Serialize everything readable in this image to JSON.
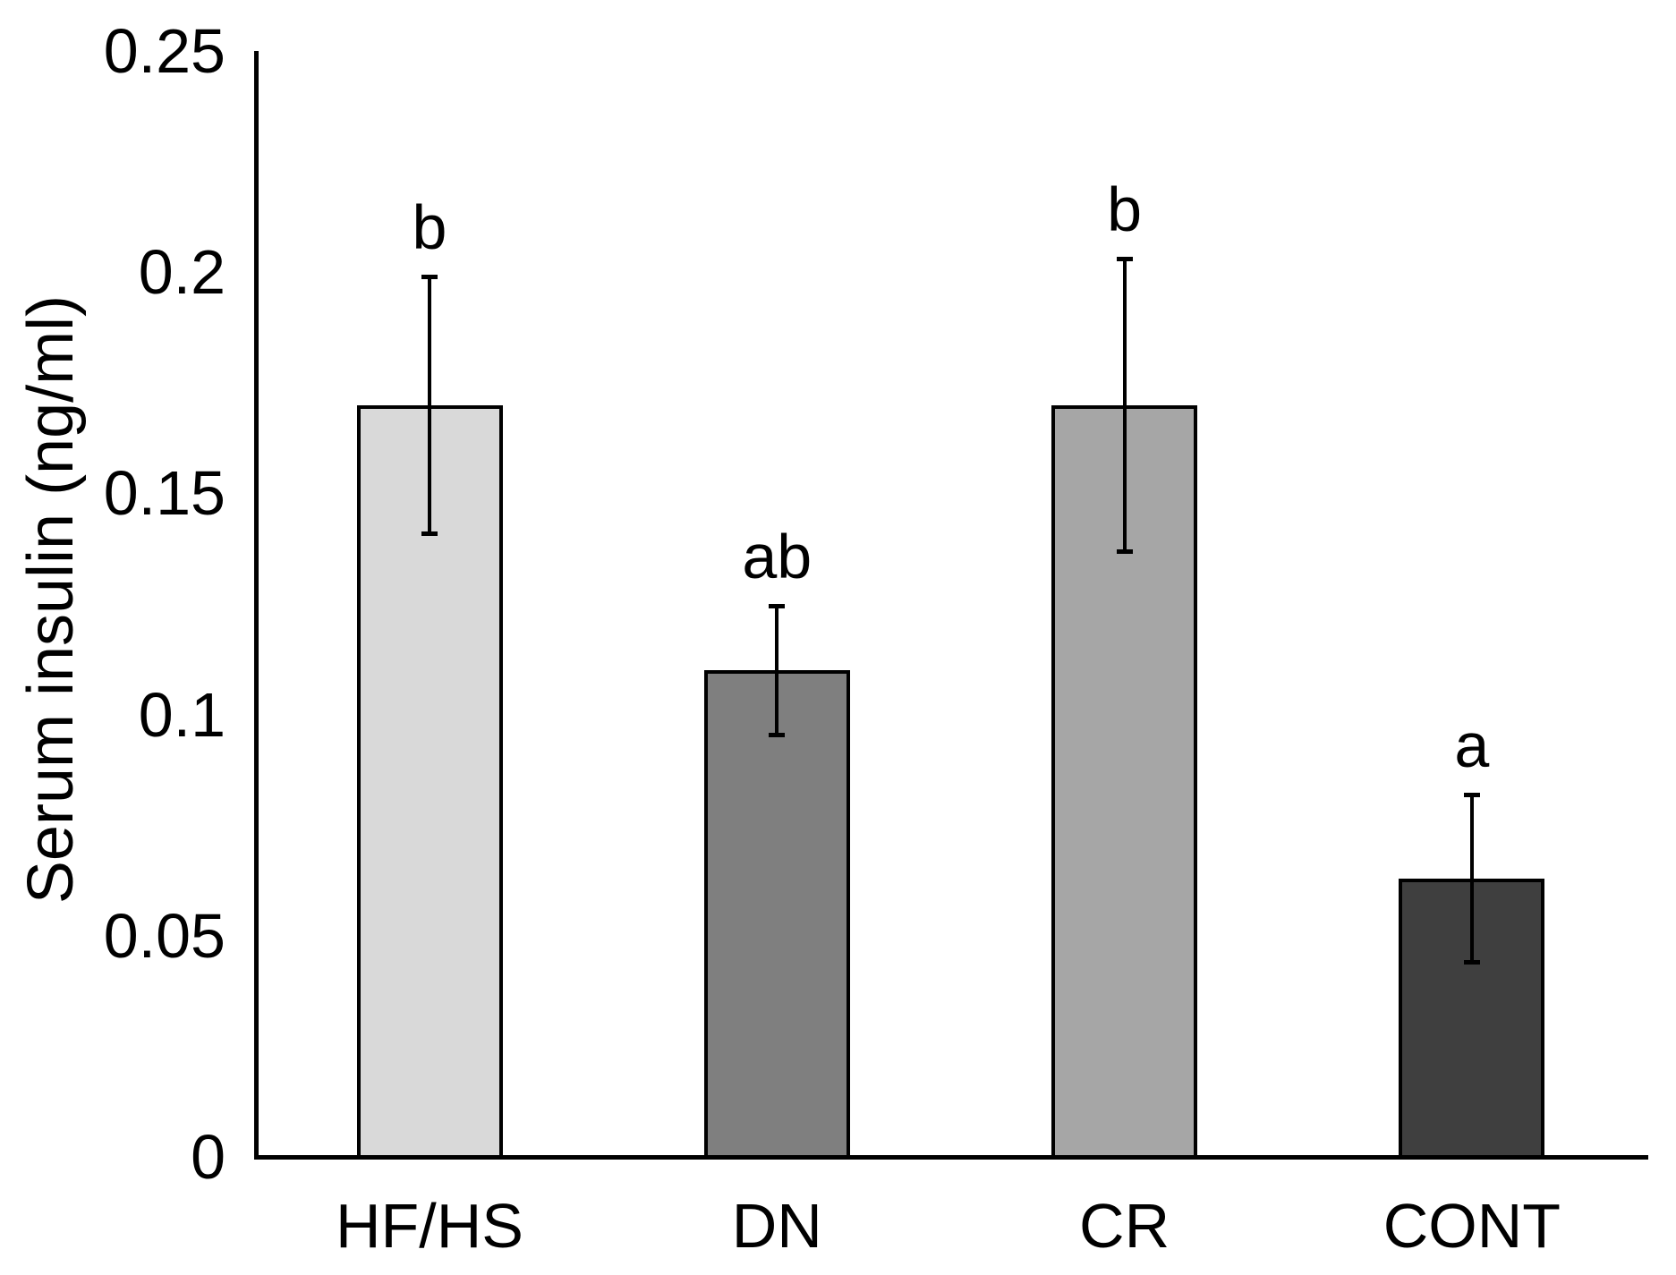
{
  "chart_data": {
    "type": "bar",
    "title": "",
    "xlabel": "",
    "ylabel": "Serum insulin (ng/ml)",
    "categories": [
      "HF/HS",
      "DN",
      "CR",
      "CONT"
    ],
    "values": [
      0.17,
      0.11,
      0.17,
      0.063
    ],
    "error_bars": [
      0.029,
      0.0145,
      0.033,
      0.019
    ],
    "sig_letters": [
      "b",
      "ab",
      "b",
      "a"
    ],
    "bar_colors": [
      "#d9d9d9",
      "#7f7f7f",
      "#a6a6a6",
      "#3f3f3f"
    ],
    "bar_edge_color": "#000000",
    "error_bar_color": "#000000",
    "ylim": [
      0,
      0.25
    ],
    "yticks": [
      0,
      0.05,
      0.1,
      0.15,
      0.2,
      0.25
    ],
    "ytick_labels": [
      "0",
      "0.05",
      "0.1",
      "0.15",
      "0.2",
      "0.25"
    ],
    "grid": false,
    "legend": null
  }
}
